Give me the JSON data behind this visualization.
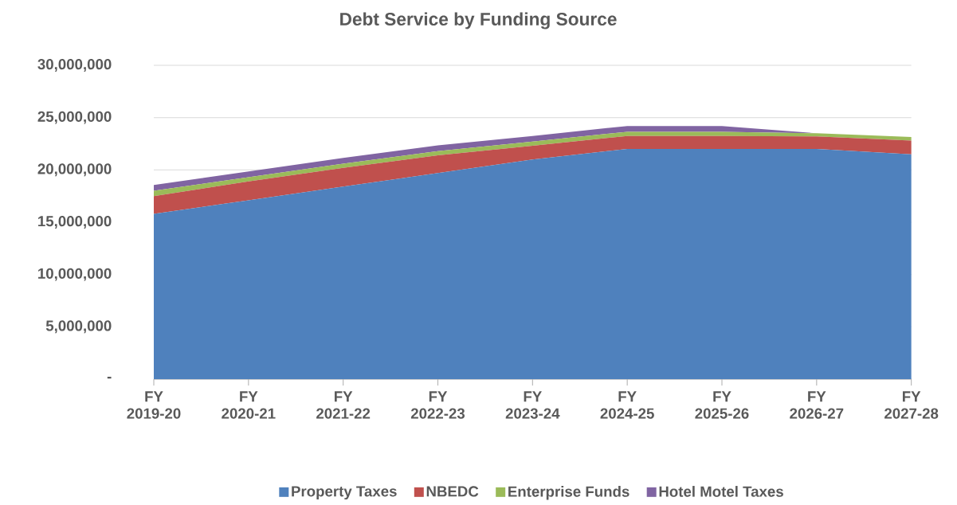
{
  "chart_data": {
    "type": "area",
    "title": "Debt Service by Funding Source",
    "categories": [
      "FY 2019-20",
      "FY 2020-21",
      "FY 2021-22",
      "FY 2022-23",
      "FY 2023-24",
      "FY 2024-25",
      "FY 2025-26",
      "FY 2026-27",
      "FY 2027-28"
    ],
    "stacked": true,
    "series": [
      {
        "name": "Property Taxes",
        "color": "#4f81bd",
        "values": [
          15800000,
          17100000,
          18400000,
          19700000,
          21000000,
          22000000,
          22000000,
          22000000,
          21500000
        ]
      },
      {
        "name": "NBEDC",
        "color": "#c0504d",
        "values": [
          1700000,
          1800000,
          1800000,
          1700000,
          1300000,
          1250000,
          1250000,
          1200000,
          1300000
        ]
      },
      {
        "name": "Enterprise Funds",
        "color": "#9bbb59",
        "values": [
          500000,
          400000,
          400000,
          400000,
          400000,
          400000,
          400000,
          300000,
          350000
        ]
      },
      {
        "name": "Hotel Motel Taxes",
        "color": "#8064a2",
        "values": [
          550000,
          550000,
          550000,
          550000,
          550000,
          550000,
          550000,
          0,
          0
        ]
      }
    ],
    "ylim": [
      0,
      30000000
    ],
    "yticks": [
      {
        "value": 0,
        "label": "-"
      },
      {
        "value": 5000000,
        "label": "5,000,000"
      },
      {
        "value": 10000000,
        "label": "10,000,000"
      },
      {
        "value": 15000000,
        "label": "15,000,000"
      },
      {
        "value": 20000000,
        "label": "20,000,000"
      },
      {
        "value": 25000000,
        "label": "25,000,000"
      },
      {
        "value": 30000000,
        "label": "30,000,000"
      }
    ],
    "grid": "y",
    "legend": "bottom"
  }
}
